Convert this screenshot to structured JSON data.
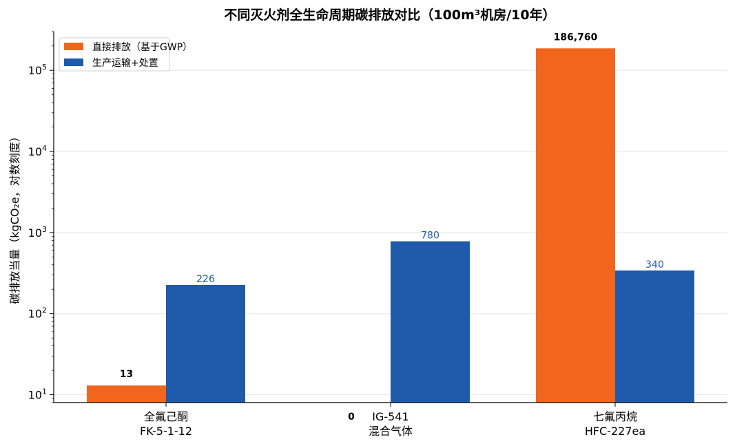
{
  "chart_data": {
    "type": "bar",
    "title": "不同灭火剂全生命周期碳排放对比（100m³机房/10年）",
    "xlabel": "",
    "ylabel": "碳排放当量（kgCO₂e，对数刻度）",
    "yscale": "log",
    "ylim": [
      8,
      300000
    ],
    "y_ticks": [
      {
        "value": 10,
        "base": "10",
        "exp": "1"
      },
      {
        "value": 100,
        "base": "10",
        "exp": "2"
      },
      {
        "value": 1000,
        "base": "10",
        "exp": "3"
      },
      {
        "value": 10000,
        "base": "10",
        "exp": "4"
      },
      {
        "value": 100000,
        "base": "10",
        "exp": "5"
      }
    ],
    "grid": "horizontal",
    "legend_position": "top-left",
    "categories": [
      [
        "全氟己酮",
        "FK-5-1-12"
      ],
      [
        "IG-541",
        "混合气体"
      ],
      [
        "七氟丙烷",
        "HFC-227ea"
      ]
    ],
    "series": [
      {
        "name": "直接排放（基于GWP）",
        "color": "#F2651C",
        "values": [
          13,
          0,
          186760
        ],
        "labels": [
          "13",
          "0",
          "186,760"
        ],
        "label_color": "#000000",
        "label_bold": true
      },
      {
        "name": "生产运输+处置",
        "color": "#1F5BAA",
        "values": [
          226,
          780,
          340
        ],
        "labels": [
          "226",
          "780",
          "340"
        ],
        "label_color": "#1F5BAA",
        "label_bold": false
      }
    ]
  }
}
